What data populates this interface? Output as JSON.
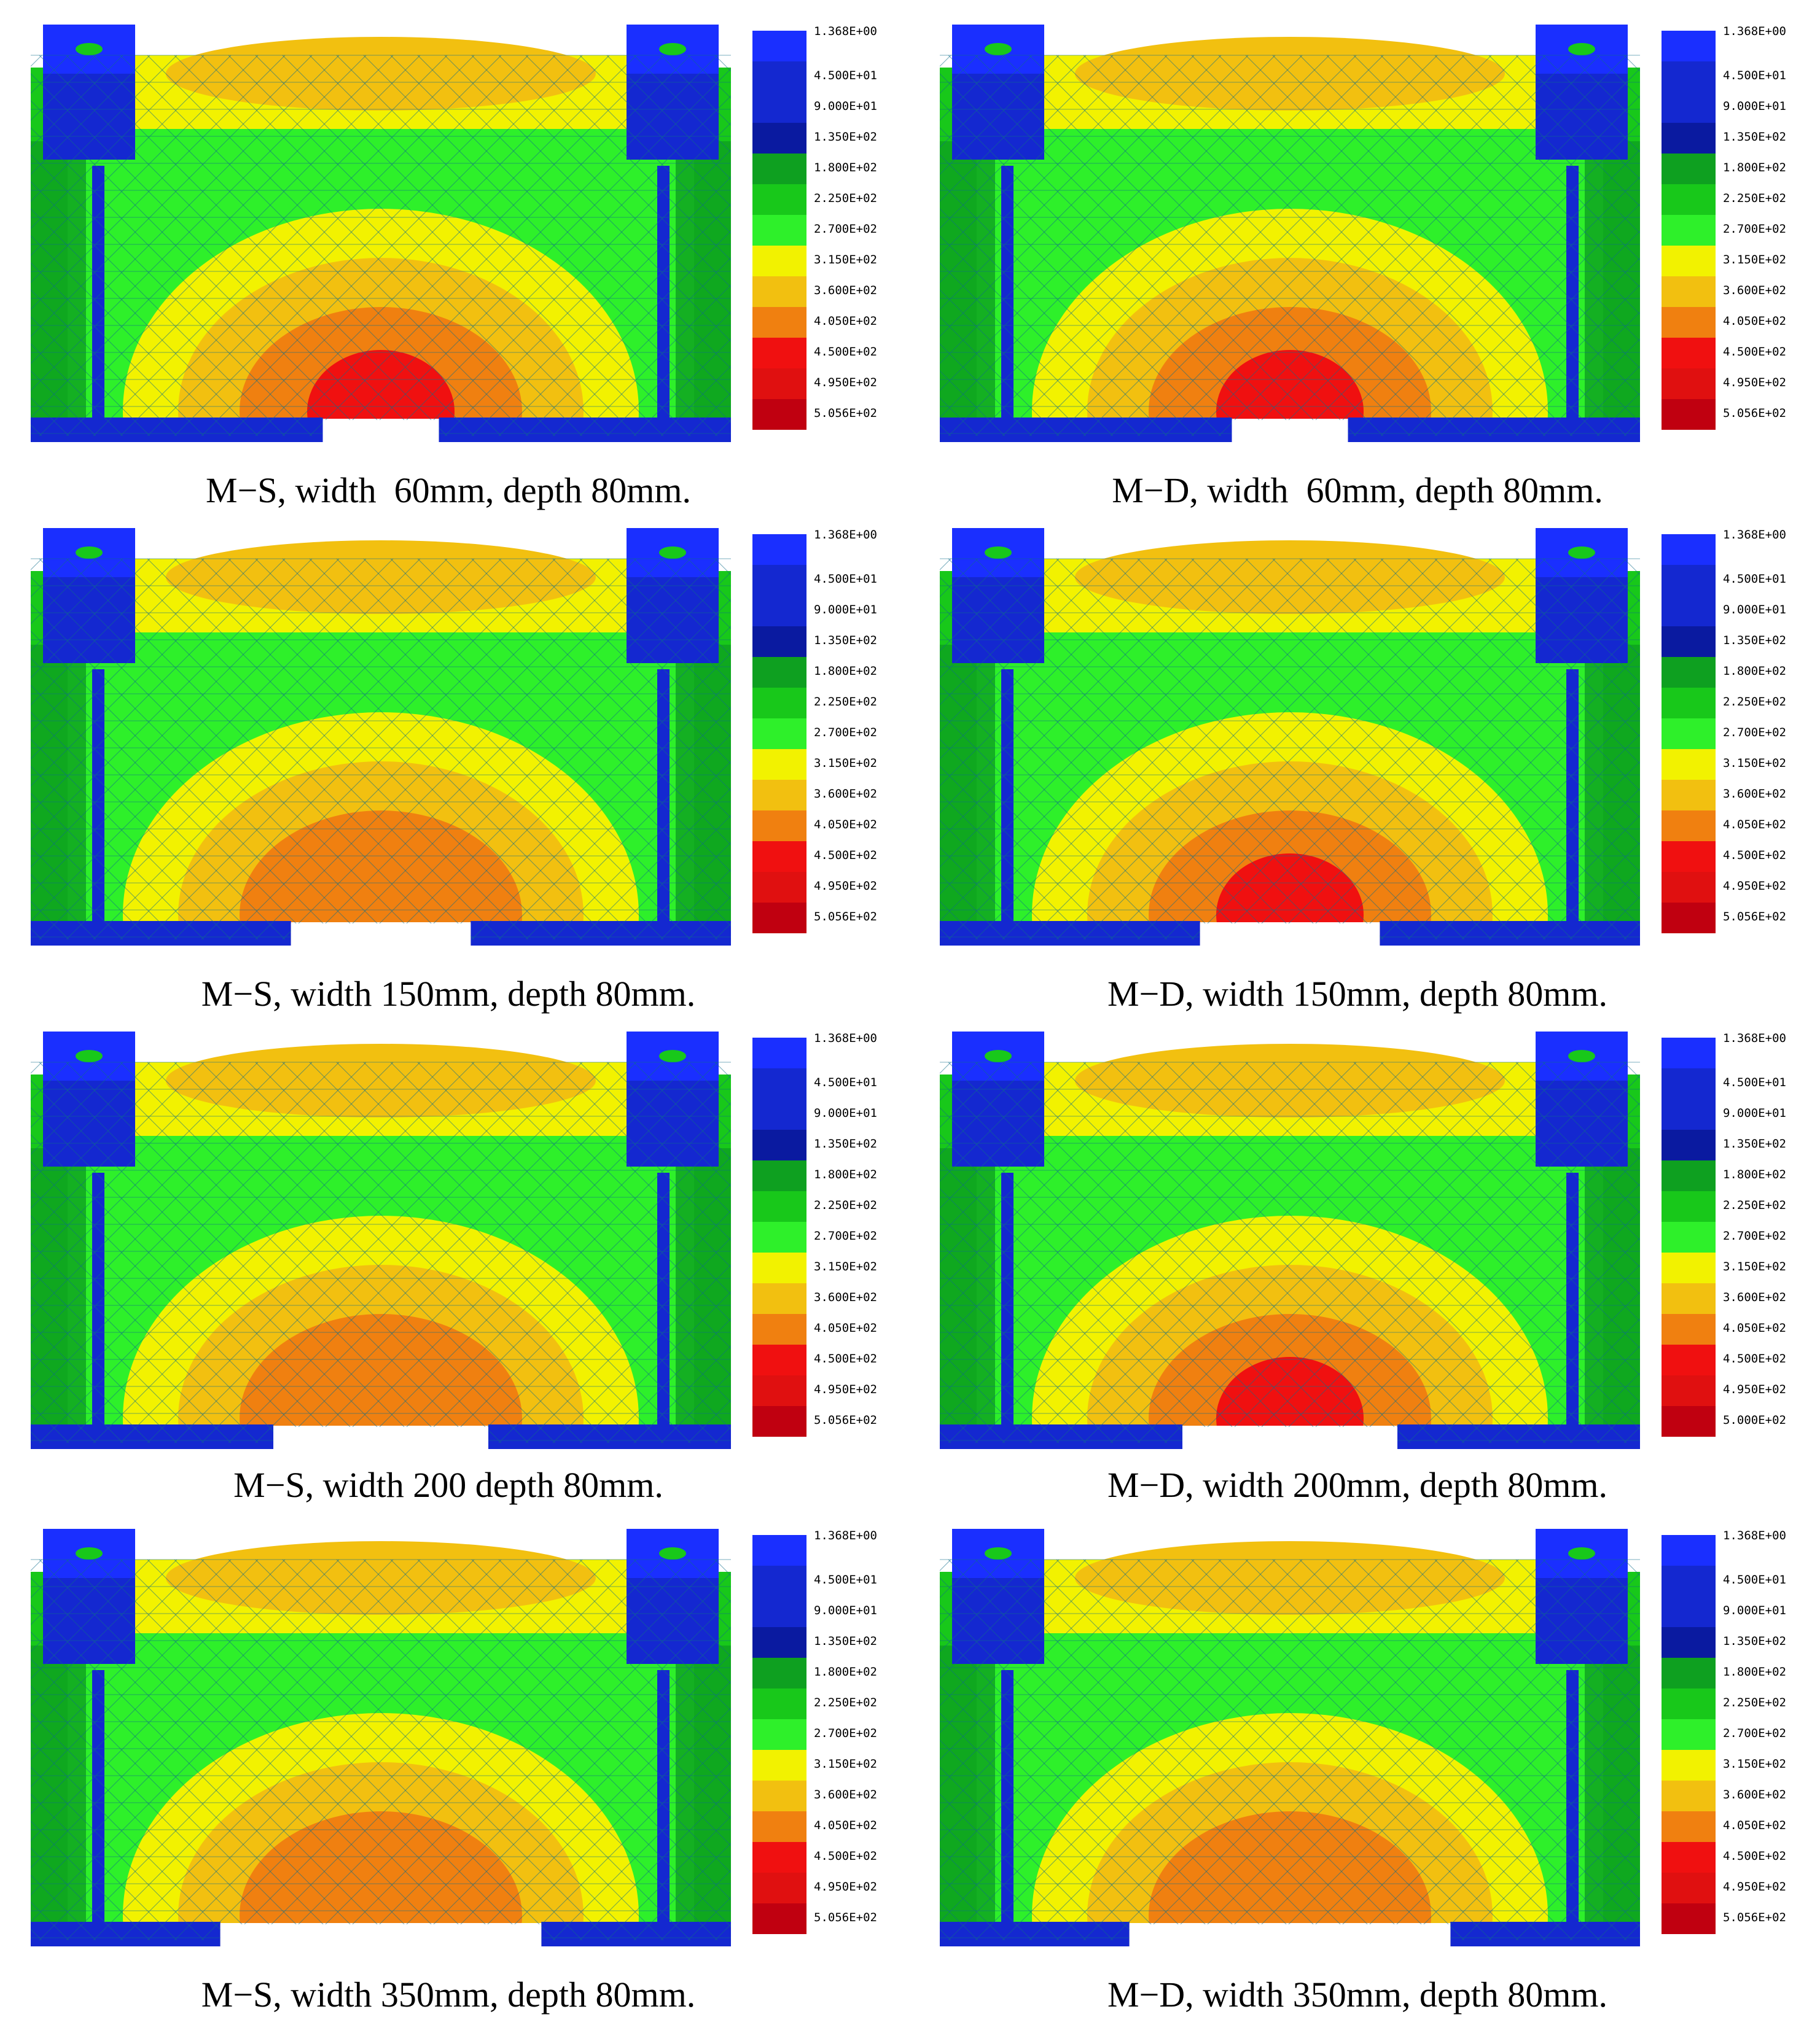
{
  "colors": {
    "blue_light": "#1a2fff",
    "blue": "#1428d0",
    "blue_dark": "#0a1aa0",
    "green_dark": "#0ea020",
    "green": "#18c81a",
    "green_light": "#2ef02a",
    "yellow": "#f2f200",
    "amber": "#f2c010",
    "orange": "#f08010",
    "red": "#f01010",
    "red_mid": "#e01010",
    "red_dark": "#c00010",
    "mesh_line": "#0e6e8a"
  },
  "panels": [
    {
      "caption": "M−S, width  60mm, depth 80mm.",
      "legend": [
        "1.368E+00",
        "4.500E+01",
        "9.000E+01",
        "1.350E+02",
        "1.800E+02",
        "2.250E+02",
        "2.700E+02",
        "3.150E+02",
        "3.600E+02",
        "4.050E+02",
        "4.500E+02",
        "4.950E+02",
        "5.056E+02"
      ],
      "gap_width": 60,
      "peak_level": 3
    },
    {
      "caption": "M−D, width  60mm, depth 80mm.",
      "legend": [
        "1.368E+00",
        "4.500E+01",
        "9.000E+01",
        "1.350E+02",
        "1.800E+02",
        "2.250E+02",
        "2.700E+02",
        "3.150E+02",
        "3.600E+02",
        "4.050E+02",
        "4.500E+02",
        "4.950E+02",
        "5.056E+02"
      ],
      "gap_width": 60,
      "peak_level": 3
    },
    {
      "caption": "M−S, width 150mm, depth 80mm.",
      "legend": [
        "1.368E+00",
        "4.500E+01",
        "9.000E+01",
        "1.350E+02",
        "1.800E+02",
        "2.250E+02",
        "2.700E+02",
        "3.150E+02",
        "3.600E+02",
        "4.050E+02",
        "4.500E+02",
        "4.950E+02",
        "5.056E+02"
      ],
      "gap_width": 150,
      "peak_level": 2
    },
    {
      "caption": "M−D, width 150mm, depth 80mm.",
      "legend": [
        "1.368E+00",
        "4.500E+01",
        "9.000E+01",
        "1.350E+02",
        "1.800E+02",
        "2.250E+02",
        "2.700E+02",
        "3.150E+02",
        "3.600E+02",
        "4.050E+02",
        "4.500E+02",
        "4.950E+02",
        "5.056E+02"
      ],
      "gap_width": 150,
      "peak_level": 3
    },
    {
      "caption": "M−S, width 200 depth 80mm.",
      "legend": [
        "1.368E+00",
        "4.500E+01",
        "9.000E+01",
        "1.350E+02",
        "1.800E+02",
        "2.250E+02",
        "2.700E+02",
        "3.150E+02",
        "3.600E+02",
        "4.050E+02",
        "4.500E+02",
        "4.950E+02",
        "5.056E+02"
      ],
      "gap_width": 200,
      "peak_level": 2
    },
    {
      "caption": "M−D, width 200mm, depth 80mm.",
      "legend": [
        "1.368E+00",
        "4.500E+01",
        "9.000E+01",
        "1.350E+02",
        "1.800E+02",
        "2.250E+02",
        "2.700E+02",
        "3.150E+02",
        "3.600E+02",
        "4.050E+02",
        "4.500E+02",
        "4.950E+02",
        "5.000E+02"
      ],
      "gap_width": 200,
      "peak_level": 3
    },
    {
      "caption": "M−S, width 350mm, depth 80mm.",
      "legend": [
        "1.368E+00",
        "4.500E+01",
        "9.000E+01",
        "1.350E+02",
        "1.800E+02",
        "2.250E+02",
        "2.700E+02",
        "3.150E+02",
        "3.600E+02",
        "4.050E+02",
        "4.500E+02",
        "4.950E+02",
        "5.056E+02"
      ],
      "gap_width": 350,
      "peak_level": 2
    },
    {
      "caption": "M−D, width 350mm, depth 80mm.",
      "legend": [
        "1.368E+00",
        "4.500E+01",
        "9.000E+01",
        "1.350E+02",
        "1.800E+02",
        "2.250E+02",
        "2.700E+02",
        "3.150E+02",
        "3.600E+02",
        "4.050E+02",
        "4.500E+02",
        "4.950E+02",
        "5.056E+02"
      ],
      "gap_width": 350,
      "peak_level": 2
    }
  ]
}
